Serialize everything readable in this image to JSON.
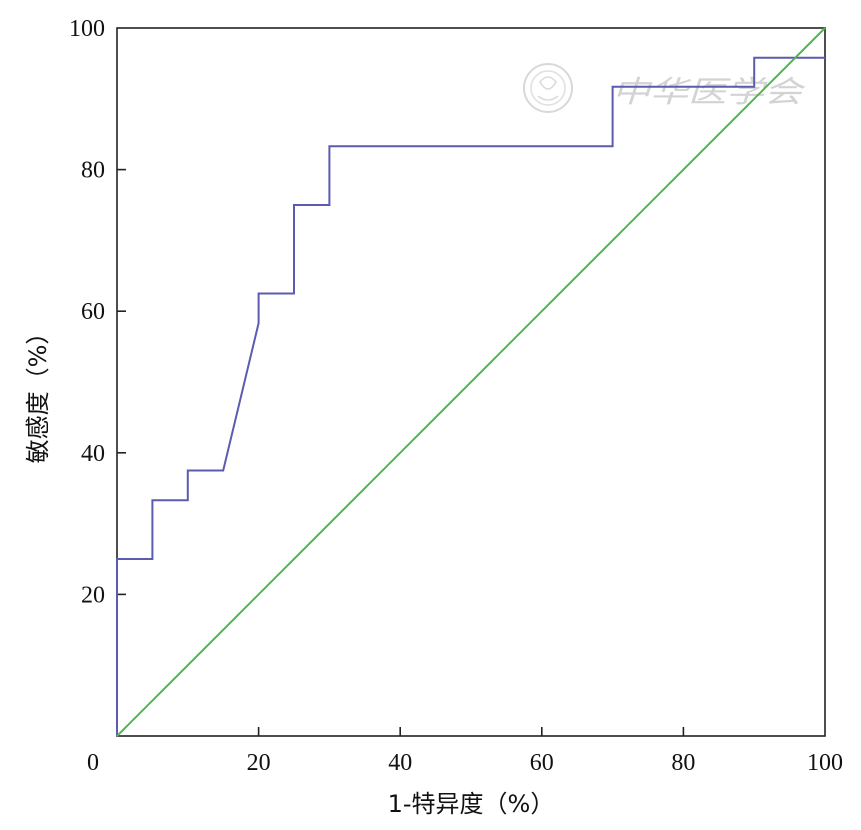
{
  "chart_data": {
    "type": "line",
    "xlabel": "1-特异度（%）",
    "ylabel": "敏感度（%）",
    "xlim": [
      0,
      100
    ],
    "ylim": [
      0,
      100
    ],
    "x_ticks": [
      0,
      20,
      40,
      60,
      80,
      100
    ],
    "y_ticks": [
      20,
      40,
      60,
      80,
      100
    ],
    "grid": false,
    "series": [
      {
        "color": "#5b5bb0",
        "x": [
          0,
          0,
          5,
          5,
          10,
          10,
          15,
          20,
          20,
          25,
          25,
          30,
          30,
          70,
          70,
          90,
          90,
          100
        ],
        "y": [
          0,
          25,
          25,
          33.3,
          33.3,
          37.5,
          37.5,
          58.3,
          62.5,
          62.5,
          75,
          75,
          83.3,
          83.3,
          91.7,
          91.7,
          95.8,
          95.8
        ]
      },
      {
        "color": "#4cb848",
        "x": [
          0,
          100
        ],
        "y": [
          0,
          100
        ]
      }
    ]
  },
  "watermark": {
    "text": "中华医学会",
    "icon": "society-seal-icon"
  }
}
